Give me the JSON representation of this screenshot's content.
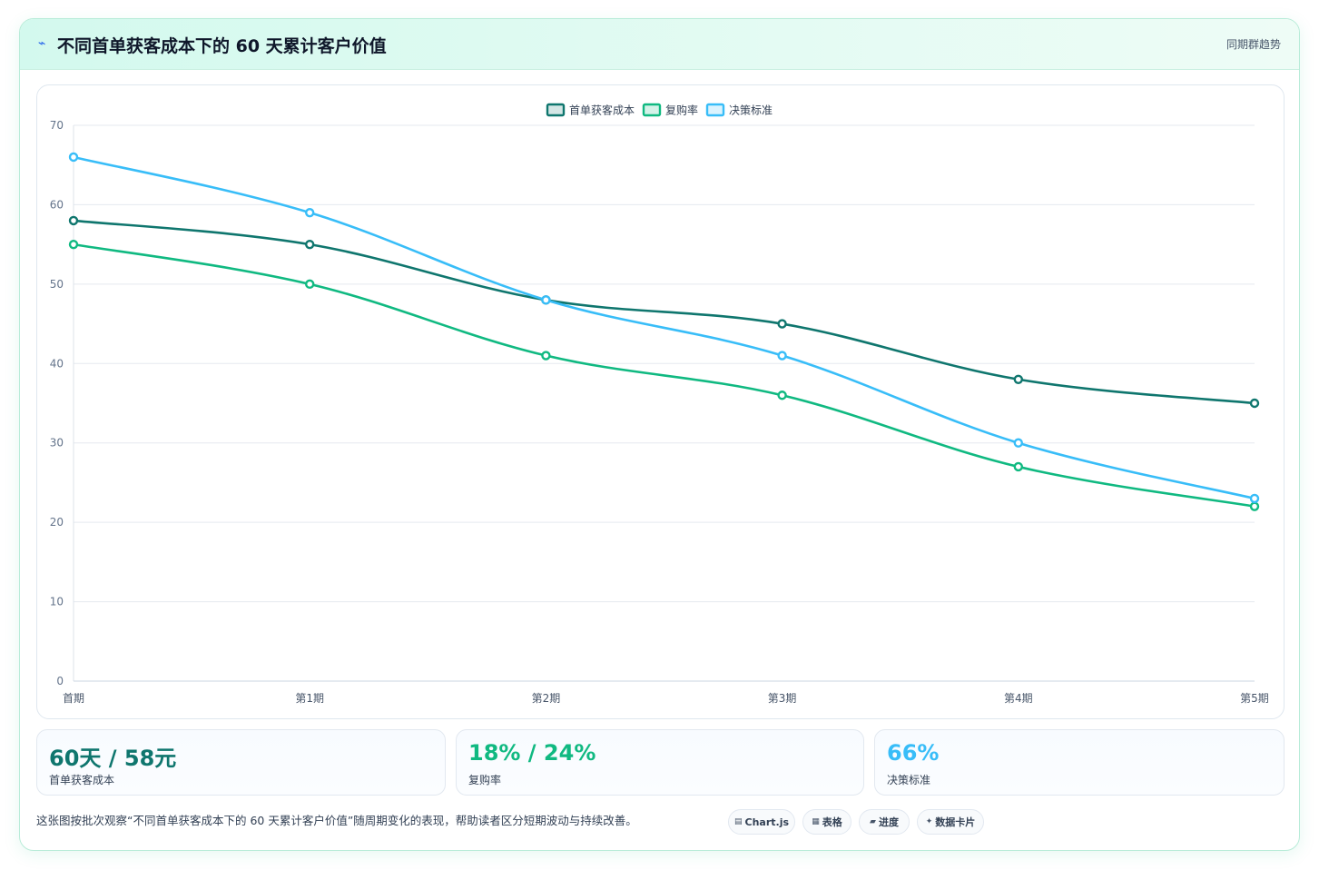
{
  "header": {
    "title": "不同首单获客成本下的 60 天累计客户价值",
    "tag": "同期群趋势"
  },
  "chart_data": {
    "type": "line",
    "categories": [
      "首期",
      "第1期",
      "第2期",
      "第3期",
      "第4期",
      "第5期"
    ],
    "series": [
      {
        "name": "首单获客成本",
        "values": [
          58,
          55,
          48,
          45,
          38,
          35
        ],
        "color": "#0f766e"
      },
      {
        "name": "复购率",
        "values": [
          55,
          50,
          41,
          36,
          27,
          22
        ],
        "color": "#10b981"
      },
      {
        "name": "决策标准",
        "values": [
          66,
          59,
          48,
          41,
          30,
          23
        ],
        "color": "#38bdf8"
      }
    ],
    "ylim": [
      0,
      70
    ],
    "yticks": [
      0,
      10,
      20,
      30,
      40,
      50,
      60,
      70
    ],
    "title": "",
    "xlabel": "",
    "ylabel": "",
    "grid": true,
    "legend_position": "top-center"
  },
  "stats": [
    {
      "value": "60天 / 58元",
      "label": "首单获客成本",
      "color": "#0f766e"
    },
    {
      "value": "18% / 24%",
      "label": "复购率",
      "color": "#10b981"
    },
    {
      "value": "66%",
      "label": "决策标准",
      "color": "#38bdf8"
    }
  ],
  "note": "这张图按批次观察“不同首单获客成本下的 60 天累计客户价值”随周期变化的表现，帮助读者区分短期波动与持续改善。",
  "pills": [
    {
      "icon": "▤",
      "label": "Chart.js",
      "icon_name": "chart-icon"
    },
    {
      "icon": "▦",
      "label": "表格",
      "icon_name": "table-icon"
    },
    {
      "icon": "▰",
      "label": "进度",
      "icon_name": "progress-icon"
    },
    {
      "icon": "✦",
      "label": "数据卡片",
      "icon_name": "sparkle-icon"
    }
  ]
}
